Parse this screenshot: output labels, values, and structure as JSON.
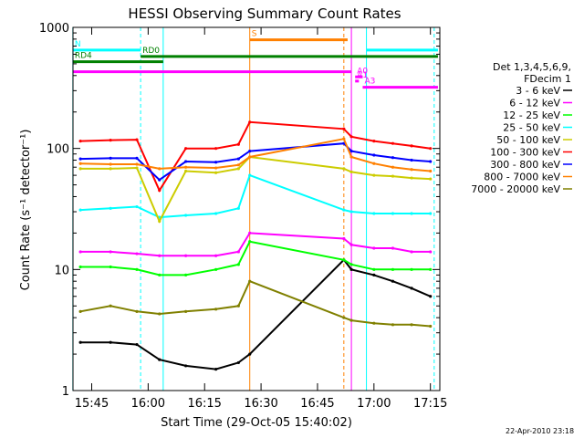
{
  "chart_data": {
    "type": "line",
    "title": "HESSI Observing Summary Count Rates",
    "xlabel": "Start Time (29-Oct-05 15:40:02)",
    "ylabel": "Count Rate (s⁻¹ detector⁻¹)",
    "y_scale": "log",
    "ylim": [
      1,
      1000
    ],
    "xlim": [
      "15:40:02",
      "17:17:30"
    ],
    "x_ticks": [
      "15:45",
      "16:00",
      "16:15",
      "16:30",
      "16:45",
      "17:00",
      "17:15"
    ],
    "y_ticks": [
      "1",
      "10",
      "100",
      "1000"
    ],
    "legend": {
      "header": [
        "Det 1,3,4,5,6,9,",
        "FDecim 1"
      ],
      "placement": "right"
    },
    "series": [
      {
        "name": "3 - 6 keV",
        "color": "#000000",
        "x": [
          "15:42",
          "15:50",
          "15:57",
          "16:03",
          "16:10",
          "16:18",
          "16:24",
          "16:27",
          "16:52",
          "16:54",
          "17:00",
          "17:05",
          "17:10",
          "17:15"
        ],
        "values": [
          2.5,
          2.5,
          2.4,
          1.8,
          1.6,
          1.5,
          1.7,
          2.0,
          12,
          10,
          9,
          8,
          7,
          6
        ]
      },
      {
        "name": "6 - 12 keV",
        "color": "#ff00ff",
        "x": [
          "15:42",
          "15:50",
          "15:57",
          "16:03",
          "16:10",
          "16:18",
          "16:24",
          "16:27",
          "16:52",
          "16:54",
          "17:00",
          "17:05",
          "17:10",
          "17:15"
        ],
        "values": [
          14,
          14,
          13.5,
          13,
          13,
          13,
          14,
          20,
          18,
          16,
          15,
          15,
          14,
          14
        ]
      },
      {
        "name": "12 - 25 keV",
        "color": "#00ff00",
        "x": [
          "15:42",
          "15:50",
          "15:57",
          "16:03",
          "16:10",
          "16:18",
          "16:24",
          "16:27",
          "16:52",
          "16:54",
          "17:00",
          "17:05",
          "17:10",
          "17:15"
        ],
        "values": [
          10.5,
          10.5,
          10,
          9,
          9,
          10,
          11,
          17,
          12,
          11,
          10,
          10,
          10,
          10
        ]
      },
      {
        "name": "25 - 50 keV",
        "color": "#00ffff",
        "x": [
          "15:42",
          "15:50",
          "15:57",
          "16:03",
          "16:10",
          "16:18",
          "16:24",
          "16:27",
          "16:52",
          "16:54",
          "17:00",
          "17:05",
          "17:10",
          "17:15"
        ],
        "values": [
          31,
          32,
          33,
          27,
          28,
          29,
          32,
          60,
          31,
          30,
          29,
          29,
          29,
          29
        ]
      },
      {
        "name": "50 - 100 keV",
        "color": "#cccc00",
        "x": [
          "15:42",
          "15:50",
          "15:57",
          "16:03",
          "16:10",
          "16:18",
          "16:24",
          "16:27",
          "16:52",
          "16:54",
          "17:00",
          "17:05",
          "17:10",
          "17:15"
        ],
        "values": [
          68,
          68,
          69,
          25,
          65,
          63,
          68,
          85,
          68,
          64,
          60,
          59,
          57,
          56
        ]
      },
      {
        "name": "100 - 300 keV",
        "color": "#ff0000",
        "x": [
          "15:42",
          "15:50",
          "15:57",
          "16:03",
          "16:10",
          "16:18",
          "16:24",
          "16:27",
          "16:52",
          "16:54",
          "17:00",
          "17:05",
          "17:10",
          "17:15"
        ],
        "values": [
          115,
          117,
          118,
          45,
          100,
          100,
          108,
          165,
          145,
          125,
          115,
          110,
          105,
          100
        ]
      },
      {
        "name": "300 - 800 keV",
        "color": "#0000ff",
        "x": [
          "15:42",
          "15:50",
          "15:57",
          "16:03",
          "16:10",
          "16:18",
          "16:24",
          "16:27",
          "16:52",
          "16:54",
          "17:00",
          "17:05",
          "17:10",
          "17:15"
        ],
        "values": [
          82,
          83,
          83,
          55,
          78,
          77,
          82,
          95,
          110,
          95,
          88,
          84,
          80,
          78
        ]
      },
      {
        "name": "800 - 7000 keV",
        "color": "#ff8000",
        "x": [
          "15:42",
          "15:50",
          "15:57",
          "16:03",
          "16:10",
          "16:18",
          "16:24",
          "16:27",
          "16:52",
          "16:54",
          "17:00",
          "17:05",
          "17:10",
          "17:15"
        ],
        "values": [
          75,
          74,
          74,
          68,
          70,
          69,
          73,
          85,
          120,
          85,
          75,
          70,
          67,
          65
        ]
      },
      {
        "name": "7000 - 20000 keV",
        "color": "#808000",
        "x": [
          "15:42",
          "15:50",
          "15:57",
          "16:03",
          "16:10",
          "16:18",
          "16:24",
          "16:27",
          "16:52",
          "16:54",
          "17:00",
          "17:05",
          "17:10",
          "17:15"
        ],
        "values": [
          4.5,
          5,
          4.5,
          4.3,
          4.5,
          4.7,
          5,
          8,
          4,
          3.8,
          3.6,
          3.5,
          3.5,
          3.4
        ]
      }
    ],
    "flags": [
      {
        "label": "N",
        "color": "#00ffff",
        "y": 650,
        "segments": [
          [
            "15:40",
            "15:58"
          ],
          [
            "16:58",
            "17:17"
          ]
        ]
      },
      {
        "label": "RD0",
        "color": "#008000",
        "y": 575,
        "segments": [
          [
            "15:58",
            "17:17"
          ]
        ]
      },
      {
        "label": "RD4",
        "color": "#008000",
        "y": 520,
        "segments": [
          [
            "15:40",
            "16:04"
          ]
        ]
      },
      {
        "label": "S",
        "color": "#ff8000",
        "y": 790,
        "segments": [
          [
            "16:27",
            "16:53"
          ]
        ]
      },
      {
        "label": "",
        "color": "#ff00ff",
        "y": 430,
        "segments": [
          [
            "15:40",
            "16:54"
          ]
        ]
      },
      {
        "label": "A0",
        "color": "#ff00ff",
        "y": 390,
        "segments": [
          [
            "16:55",
            "16:57"
          ]
        ]
      },
      {
        "label": "A1",
        "color": "#ff00ff",
        "y": 360,
        "segments": [
          [
            "16:55",
            "16:56"
          ]
        ]
      },
      {
        "label": "A3",
        "color": "#ff00ff",
        "y": 320,
        "segments": [
          [
            "16:57",
            "17:17"
          ]
        ]
      }
    ],
    "vlines": [
      {
        "time": "15:40",
        "color": "#00ffff",
        "style": "solid"
      },
      {
        "time": "15:58",
        "color": "#00ffff",
        "style": "dashed"
      },
      {
        "time": "16:04",
        "color": "#00ffff",
        "style": "solid"
      },
      {
        "time": "16:27",
        "color": "#ff8000",
        "style": "solid"
      },
      {
        "time": "16:52",
        "color": "#ff8000",
        "style": "dashed"
      },
      {
        "time": "16:54",
        "color": "#ff00ff",
        "style": "solid"
      },
      {
        "time": "16:58",
        "color": "#00ffff",
        "style": "solid"
      },
      {
        "time": "17:16",
        "color": "#00ffff",
        "style": "dashed"
      }
    ]
  },
  "timestamp": "22-Apr-2010 23:18"
}
